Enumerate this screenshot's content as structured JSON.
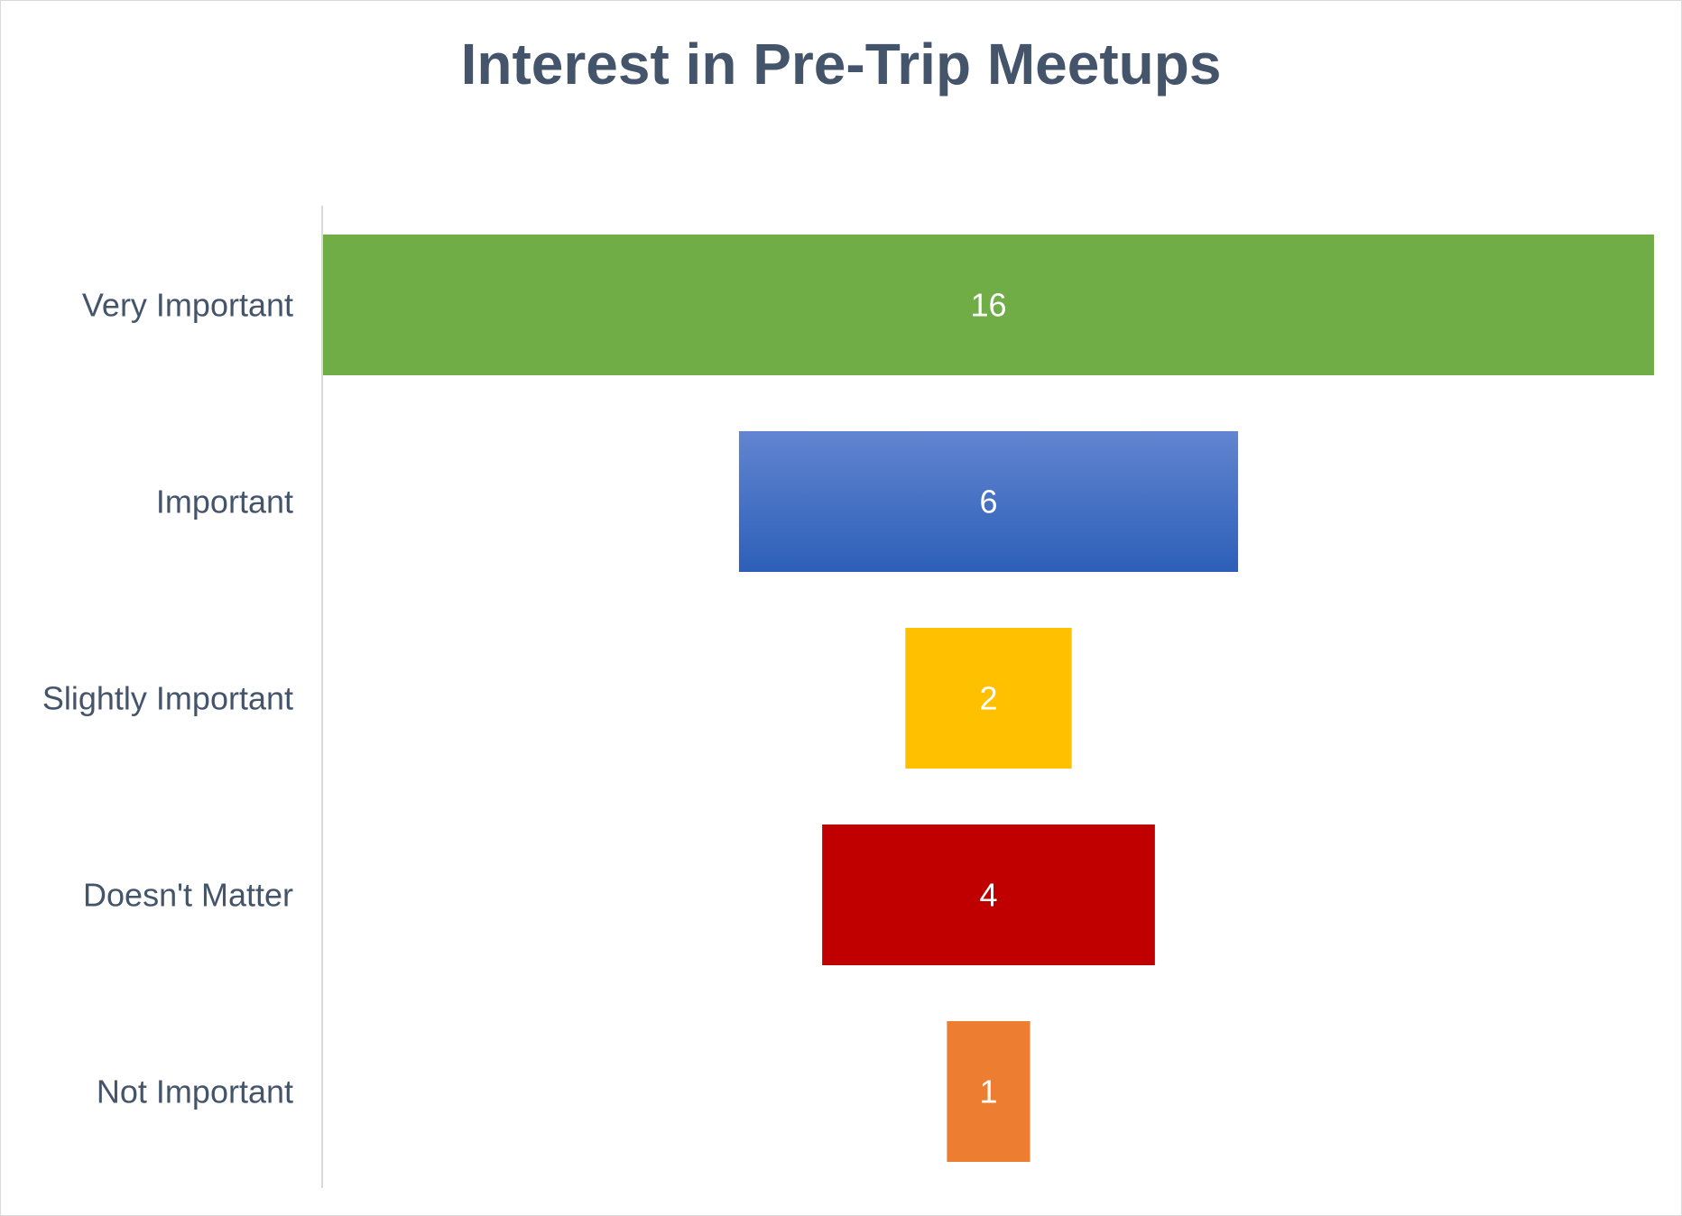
{
  "chart_data": {
    "type": "bar",
    "subtype": "funnel",
    "title": "Interest in Pre-Trip Meetups",
    "categories": [
      "Very Important",
      "Important",
      "Slightly Important",
      "Doesn't Matter",
      "Not Important"
    ],
    "values": [
      16,
      6,
      2,
      4,
      1
    ],
    "colors": [
      "#70ad47",
      "#4472c4",
      "#ffc000",
      "#c00000",
      "#ed7d31"
    ],
    "data_labels": true,
    "grid": false,
    "legend": "none"
  }
}
